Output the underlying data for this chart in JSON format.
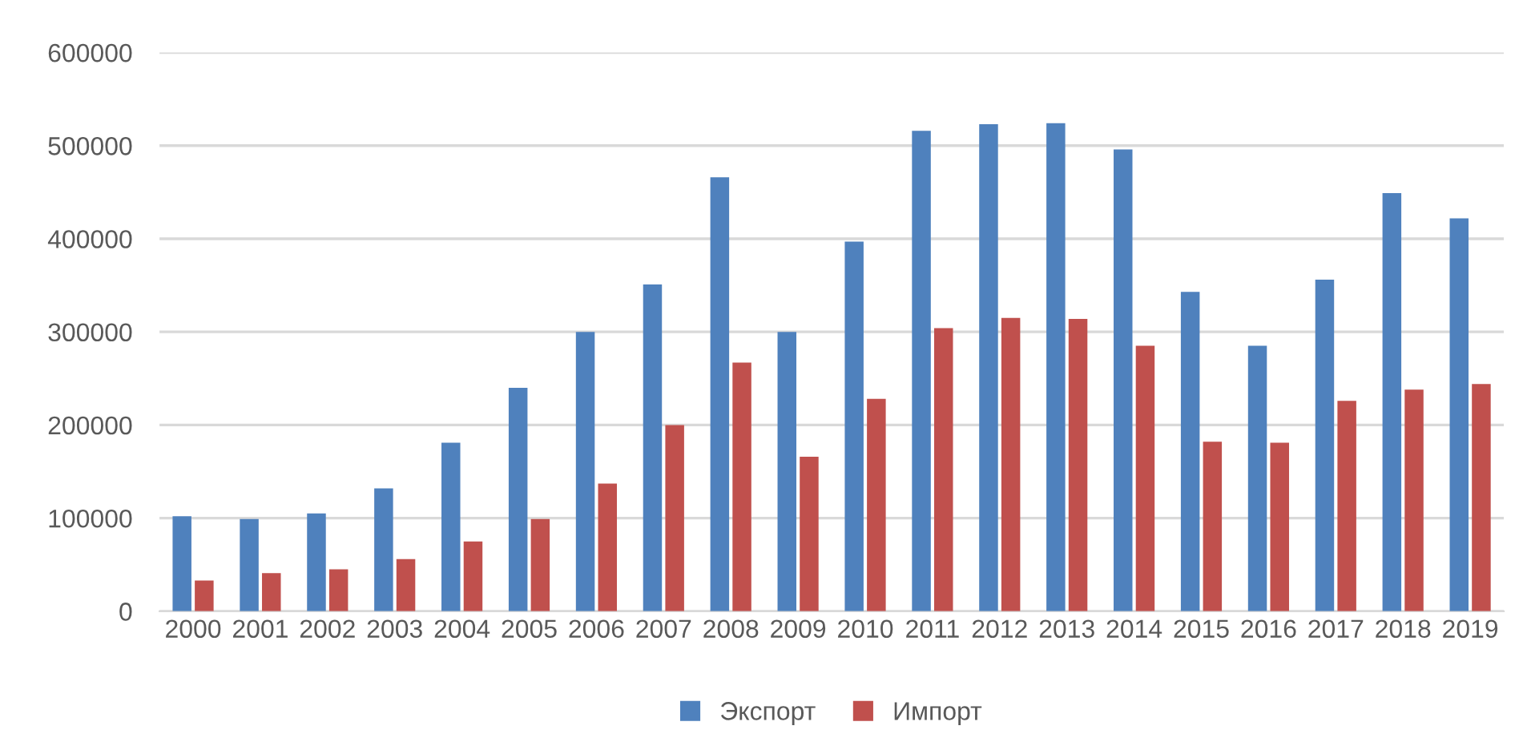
{
  "chart_data": {
    "type": "bar",
    "categories": [
      "2000",
      "2001",
      "2002",
      "2003",
      "2004",
      "2005",
      "2006",
      "2007",
      "2008",
      "2009",
      "2010",
      "2011",
      "2012",
      "2013",
      "2014",
      "2015",
      "2016",
      "2017",
      "2018",
      "2019"
    ],
    "series": [
      {
        "name": "Экспорт",
        "color": "#4f81bd",
        "values": [
          102000,
          99000,
          105000,
          132000,
          181000,
          240000,
          300000,
          351000,
          466000,
          300000,
          397000,
          516000,
          523000,
          524000,
          496000,
          343000,
          285000,
          356000,
          449000,
          422000
        ]
      },
      {
        "name": "Импорт",
        "color": "#c0504d",
        "values": [
          33000,
          41000,
          45000,
          56000,
          75000,
          99000,
          137000,
          200000,
          267000,
          166000,
          228000,
          304000,
          315000,
          314000,
          285000,
          182000,
          181000,
          226000,
          238000,
          244000
        ]
      }
    ],
    "ylim": [
      0,
      600000
    ],
    "yticks": [
      0,
      100000,
      200000,
      300000,
      400000,
      500000,
      600000
    ],
    "grid": "y",
    "legend": "bottom"
  }
}
